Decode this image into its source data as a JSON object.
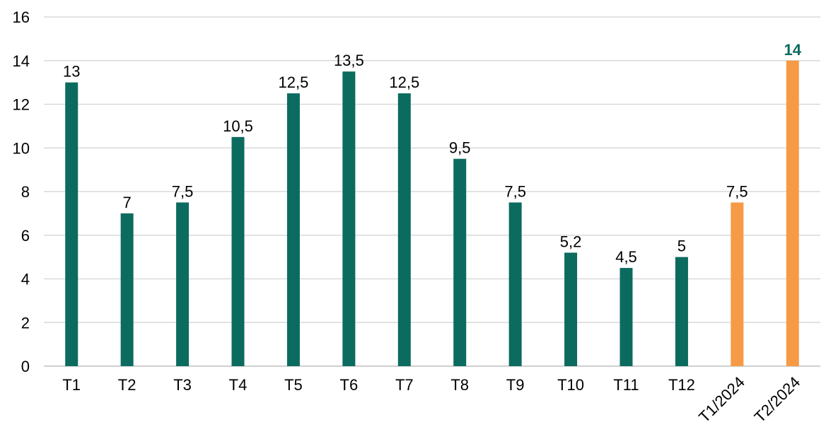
{
  "chart_data": {
    "type": "bar",
    "title": "",
    "xlabel": "",
    "ylabel": "",
    "ylim": [
      0,
      16
    ],
    "yticks": [
      "0",
      "2",
      "4",
      "6",
      "8",
      "10",
      "12",
      "14",
      "16"
    ],
    "grid": true,
    "categories": [
      "T1",
      "T2",
      "T3",
      "T4",
      "T5",
      "T6",
      "T7",
      "T8",
      "T9",
      "T10",
      "T11",
      "T12",
      "T1/2024",
      "T2/2024"
    ],
    "values": [
      13,
      7,
      7.5,
      10.5,
      12.5,
      13.5,
      12.5,
      9.5,
      7.5,
      5.2,
      4.5,
      5,
      7.5,
      14
    ],
    "data_labels": [
      "13",
      "7",
      "7,5",
      "10,5",
      "12,5",
      "13,5",
      "12,5",
      "9,5",
      "7,5",
      "5,2",
      "4,5",
      "5",
      "7,5",
      "14"
    ],
    "bar_colors": [
      "#0b6b5f",
      "#0b6b5f",
      "#0b6b5f",
      "#0b6b5f",
      "#0b6b5f",
      "#0b6b5f",
      "#0b6b5f",
      "#0b6b5f",
      "#0b6b5f",
      "#0b6b5f",
      "#0b6b5f",
      "#0b6b5f",
      "#f79a46",
      "#f79a46"
    ],
    "highlight_label_index": 13,
    "rotated_category_indices": [
      12,
      13
    ]
  }
}
